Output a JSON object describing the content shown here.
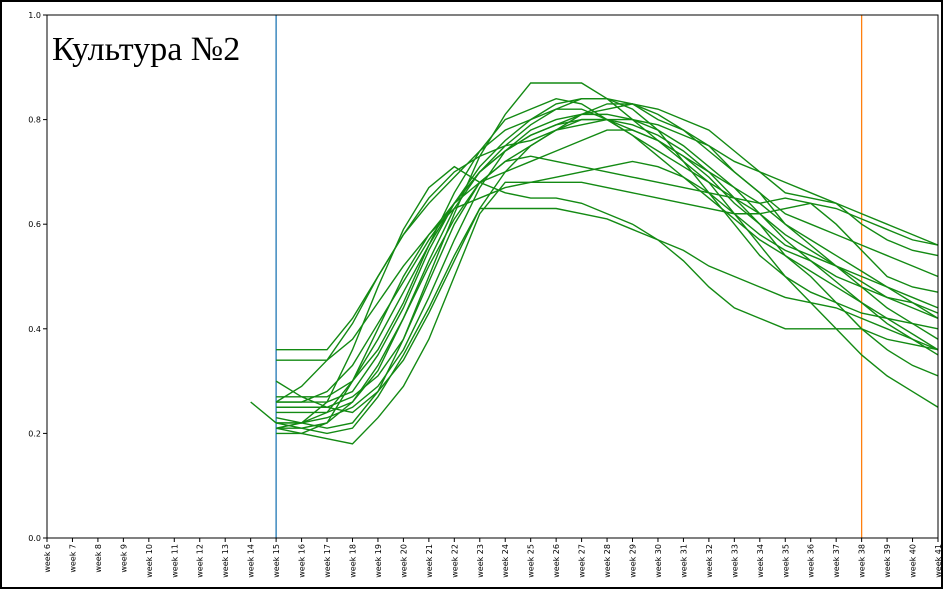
{
  "chart_data": {
    "type": "line",
    "annotation": "Культура №2",
    "categories": [
      "week 6",
      "week 7",
      "week 8",
      "week 9",
      "week 10",
      "week 11",
      "week 12",
      "week 13",
      "week 14",
      "week 15",
      "week 16",
      "week 17",
      "week 18",
      "week 19",
      "week 20",
      "week 21",
      "week 22",
      "week 23",
      "week 24",
      "week 25",
      "week 26",
      "week 27",
      "week 28",
      "week 29",
      "week 30",
      "week 31",
      "week 32",
      "week 33",
      "week 34",
      "week 35",
      "week 36",
      "week 37",
      "week 38",
      "week 39",
      "week 40",
      "week 41"
    ],
    "ylim": [
      0,
      1
    ],
    "yticks": [
      {
        "value": 0,
        "label": "0.0"
      },
      0.2,
      0.4,
      0.6,
      0.8,
      {
        "value": 1,
        "label": "1.0"
      }
    ],
    "vlines": [
      {
        "x": "week 15",
        "color": "#1f77b4"
      },
      {
        "x": "week 38",
        "color": "#ff7f0e"
      }
    ],
    "color": "#138a13",
    "series": [
      {
        "values": [
          null,
          null,
          null,
          null,
          null,
          null,
          null,
          null,
          0.26,
          0.22,
          0.21,
          0.22,
          0.3,
          0.38,
          0.47,
          0.56,
          0.64,
          0.7,
          0.74,
          0.77,
          0.79,
          0.8,
          0.8,
          0.78,
          0.76,
          0.73,
          0.7,
          0.67,
          0.64,
          0.6,
          0.57,
          0.54,
          0.51,
          0.48,
          0.46,
          0.44
        ]
      },
      {
        "values": [
          null,
          null,
          null,
          null,
          null,
          null,
          null,
          null,
          null,
          0.36,
          0.36,
          0.36,
          0.42,
          0.5,
          0.58,
          0.65,
          0.7,
          0.73,
          0.75,
          0.76,
          0.78,
          0.79,
          0.8,
          0.8,
          0.79,
          0.77,
          0.75,
          0.72,
          0.7,
          0.68,
          0.66,
          0.64,
          0.62,
          0.6,
          0.58,
          0.56
        ]
      },
      {
        "values": [
          null,
          null,
          null,
          null,
          null,
          null,
          null,
          null,
          null,
          0.34,
          0.34,
          0.34,
          0.38,
          0.45,
          0.52,
          0.58,
          0.64,
          0.68,
          0.72,
          0.75,
          0.78,
          0.81,
          0.83,
          0.83,
          0.82,
          0.8,
          0.78,
          0.74,
          0.7,
          0.66,
          0.65,
          0.64,
          0.6,
          0.57,
          0.55,
          0.54
        ]
      },
      {
        "values": [
          null,
          null,
          null,
          null,
          null,
          null,
          null,
          null,
          null,
          0.27,
          0.27,
          0.27,
          0.3,
          0.36,
          0.45,
          0.56,
          0.66,
          0.74,
          0.8,
          0.82,
          0.84,
          0.83,
          0.8,
          0.77,
          0.74,
          0.71,
          0.68,
          0.65,
          0.62,
          0.58,
          0.55,
          0.52,
          0.49,
          0.46,
          0.45,
          0.43
        ]
      },
      {
        "values": [
          null,
          null,
          null,
          null,
          null,
          null,
          null,
          null,
          null,
          0.26,
          0.26,
          0.26,
          0.28,
          0.35,
          0.44,
          0.55,
          0.64,
          0.71,
          0.76,
          0.8,
          0.83,
          0.84,
          0.84,
          0.83,
          0.8,
          0.78,
          0.75,
          0.7,
          0.66,
          0.62,
          0.6,
          0.58,
          0.56,
          0.54,
          0.52,
          0.5
        ]
      },
      {
        "values": [
          null,
          null,
          null,
          null,
          null,
          null,
          null,
          null,
          null,
          0.25,
          0.25,
          0.25,
          0.27,
          0.31,
          0.38,
          0.49,
          0.6,
          0.68,
          0.7,
          0.72,
          0.74,
          0.76,
          0.78,
          0.78,
          0.76,
          0.73,
          0.69,
          0.64,
          0.6,
          0.56,
          0.54,
          0.52,
          0.5,
          0.48,
          0.45,
          0.42
        ]
      },
      {
        "values": [
          null,
          null,
          null,
          null,
          null,
          null,
          null,
          null,
          null,
          0.24,
          0.24,
          0.24,
          0.26,
          0.32,
          0.42,
          0.53,
          0.63,
          0.7,
          0.75,
          0.79,
          0.82,
          0.82,
          0.8,
          0.77,
          0.73,
          0.69,
          0.65,
          0.61,
          0.57,
          0.54,
          0.51,
          0.48,
          0.45,
          0.42,
          0.39,
          0.36
        ]
      },
      {
        "values": [
          null,
          null,
          null,
          null,
          null,
          null,
          null,
          null,
          null,
          0.22,
          0.22,
          0.23,
          0.25,
          0.29,
          0.36,
          0.46,
          0.57,
          0.67,
          0.74,
          0.78,
          0.8,
          0.81,
          0.81,
          0.8,
          0.78,
          0.75,
          0.71,
          0.67,
          0.62,
          0.57,
          0.53,
          0.49,
          0.45,
          0.41,
          0.38,
          0.35
        ]
      },
      {
        "values": [
          null,
          null,
          null,
          null,
          null,
          null,
          null,
          null,
          null,
          0.3,
          0.27,
          0.25,
          0.24,
          0.28,
          0.34,
          0.43,
          0.53,
          0.63,
          0.7,
          0.75,
          0.78,
          0.8,
          0.8,
          0.79,
          0.77,
          0.74,
          0.7,
          0.65,
          0.6,
          0.54,
          0.5,
          0.45,
          0.4,
          0.36,
          0.33,
          0.31
        ]
      },
      {
        "values": [
          null,
          null,
          null,
          null,
          null,
          null,
          null,
          null,
          null,
          0.21,
          0.2,
          0.19,
          0.18,
          0.23,
          0.29,
          0.38,
          0.5,
          0.62,
          0.68,
          0.68,
          0.68,
          0.68,
          0.67,
          0.66,
          0.65,
          0.64,
          0.63,
          0.62,
          0.62,
          0.63,
          0.64,
          0.63,
          0.61,
          0.59,
          0.57,
          0.56
        ]
      },
      {
        "values": [
          null,
          null,
          null,
          null,
          null,
          null,
          null,
          null,
          null,
          0.21,
          0.21,
          0.2,
          0.21,
          0.27,
          0.35,
          0.44,
          0.54,
          0.63,
          0.63,
          0.63,
          0.63,
          0.62,
          0.61,
          0.59,
          0.57,
          0.55,
          0.52,
          0.5,
          0.48,
          0.46,
          0.45,
          0.44,
          0.42,
          0.4,
          0.38,
          0.36
        ]
      },
      {
        "values": [
          null,
          null,
          null,
          null,
          null,
          null,
          null,
          null,
          null,
          0.2,
          0.2,
          0.22,
          0.26,
          0.33,
          0.42,
          0.52,
          0.61,
          0.68,
          0.72,
          0.73,
          0.72,
          0.71,
          0.7,
          0.69,
          0.68,
          0.67,
          0.66,
          0.65,
          0.64,
          0.65,
          0.64,
          0.6,
          0.55,
          0.5,
          0.48,
          0.47
        ]
      },
      {
        "values": [
          null,
          null,
          null,
          null,
          null,
          null,
          null,
          null,
          null,
          0.23,
          0.22,
          0.21,
          0.22,
          0.28,
          0.38,
          0.5,
          0.62,
          0.73,
          0.81,
          0.87,
          0.87,
          0.87,
          0.84,
          0.8,
          0.76,
          0.72,
          0.68,
          0.62,
          0.56,
          0.5,
          0.45,
          0.4,
          0.35,
          0.31,
          0.28,
          0.25
        ]
      },
      {
        "values": [
          null,
          null,
          null,
          null,
          null,
          null,
          null,
          null,
          null,
          0.22,
          0.22,
          0.24,
          0.3,
          0.4,
          0.5,
          0.58,
          0.63,
          0.65,
          0.67,
          0.68,
          0.69,
          0.7,
          0.71,
          0.72,
          0.71,
          0.69,
          0.66,
          0.62,
          0.58,
          0.55,
          0.53,
          0.5,
          0.48,
          0.46,
          0.44,
          0.42
        ]
      },
      {
        "values": [
          null,
          null,
          null,
          null,
          null,
          null,
          null,
          null,
          null,
          0.26,
          0.26,
          0.28,
          0.33,
          0.41,
          0.49,
          0.57,
          0.64,
          0.7,
          0.74,
          0.77,
          0.79,
          0.81,
          0.82,
          0.83,
          0.81,
          0.78,
          0.74,
          0.7,
          0.66,
          0.6,
          0.56,
          0.52,
          0.48,
          0.44,
          0.41,
          0.38
        ]
      },
      {
        "values": [
          null,
          null,
          null,
          null,
          null,
          null,
          null,
          null,
          null,
          0.21,
          0.22,
          0.26,
          0.36,
          0.48,
          0.59,
          0.67,
          0.71,
          0.68,
          0.66,
          0.65,
          0.65,
          0.64,
          0.62,
          0.6,
          0.57,
          0.53,
          0.48,
          0.44,
          0.42,
          0.4,
          0.4,
          0.4,
          0.4,
          0.38,
          0.37,
          0.36
        ]
      },
      {
        "values": [
          null,
          null,
          null,
          null,
          null,
          null,
          null,
          null,
          null,
          0.26,
          0.29,
          0.34,
          0.41,
          0.5,
          0.58,
          0.64,
          0.69,
          0.74,
          0.78,
          0.8,
          0.82,
          0.84,
          0.84,
          0.82,
          0.78,
          0.72,
          0.66,
          0.6,
          0.54,
          0.5,
          0.47,
          0.45,
          0.43,
          0.42,
          0.41,
          0.4
        ]
      }
    ]
  }
}
